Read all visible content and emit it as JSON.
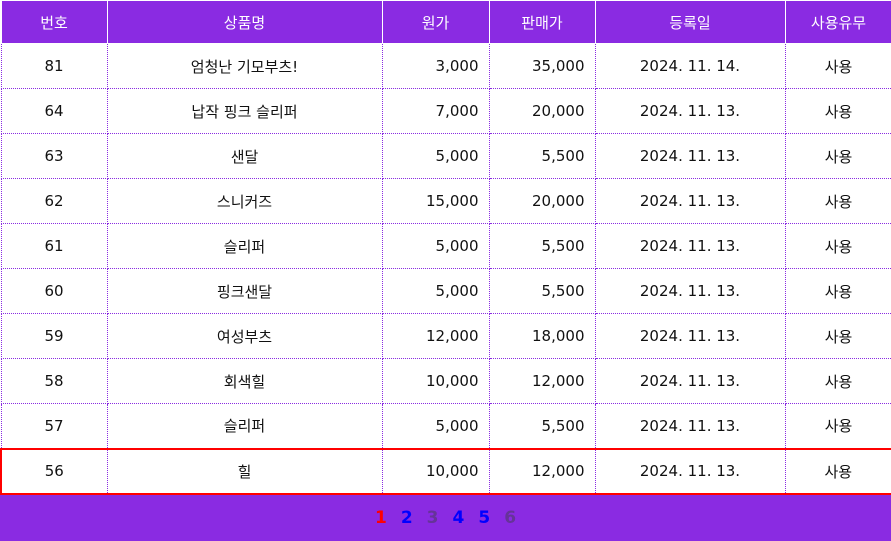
{
  "table": {
    "headers": [
      "번호",
      "상품명",
      "원가",
      "판매가",
      "등록일",
      "사용유무"
    ],
    "rows": [
      {
        "no": "81",
        "name": "엄청난 기모부츠!",
        "cost": "3,000",
        "price": "35,000",
        "date": "2024. 11. 14.",
        "use": "사용"
      },
      {
        "no": "64",
        "name": "납작 핑크 슬리퍼",
        "cost": "7,000",
        "price": "20,000",
        "date": "2024. 11. 13.",
        "use": "사용"
      },
      {
        "no": "63",
        "name": "샌달",
        "cost": "5,000",
        "price": "5,500",
        "date": "2024. 11. 13.",
        "use": "사용"
      },
      {
        "no": "62",
        "name": "스니커즈",
        "cost": "15,000",
        "price": "20,000",
        "date": "2024. 11. 13.",
        "use": "사용"
      },
      {
        "no": "61",
        "name": "슬리퍼",
        "cost": "5,000",
        "price": "5,500",
        "date": "2024. 11. 13.",
        "use": "사용"
      },
      {
        "no": "60",
        "name": "핑크샌달",
        "cost": "5,000",
        "price": "5,500",
        "date": "2024. 11. 13.",
        "use": "사용"
      },
      {
        "no": "59",
        "name": "여성부츠",
        "cost": "12,000",
        "price": "18,000",
        "date": "2024. 11. 13.",
        "use": "사용"
      },
      {
        "no": "58",
        "name": "회색힐",
        "cost": "10,000",
        "price": "12,000",
        "date": "2024. 11. 13.",
        "use": "사용"
      },
      {
        "no": "57",
        "name": "슬리퍼",
        "cost": "5,000",
        "price": "5,500",
        "date": "2024. 11. 13.",
        "use": "사용"
      },
      {
        "no": "56",
        "name": "힐",
        "cost": "10,000",
        "price": "12,000",
        "date": "2024. 11. 13.",
        "use": "사용"
      }
    ],
    "selected_row": 9
  },
  "pagination": {
    "pages": [
      {
        "label": "1",
        "color": "#ff0000"
      },
      {
        "label": "2",
        "color": "#0000ff"
      },
      {
        "label": "3",
        "color": "#663399"
      },
      {
        "label": "4",
        "color": "#0000ff"
      },
      {
        "label": "5",
        "color": "#0000ff"
      },
      {
        "label": "6",
        "color": "#663399"
      }
    ]
  },
  "colors": {
    "accent": "#8a2be2",
    "selection": "#ff0000"
  }
}
